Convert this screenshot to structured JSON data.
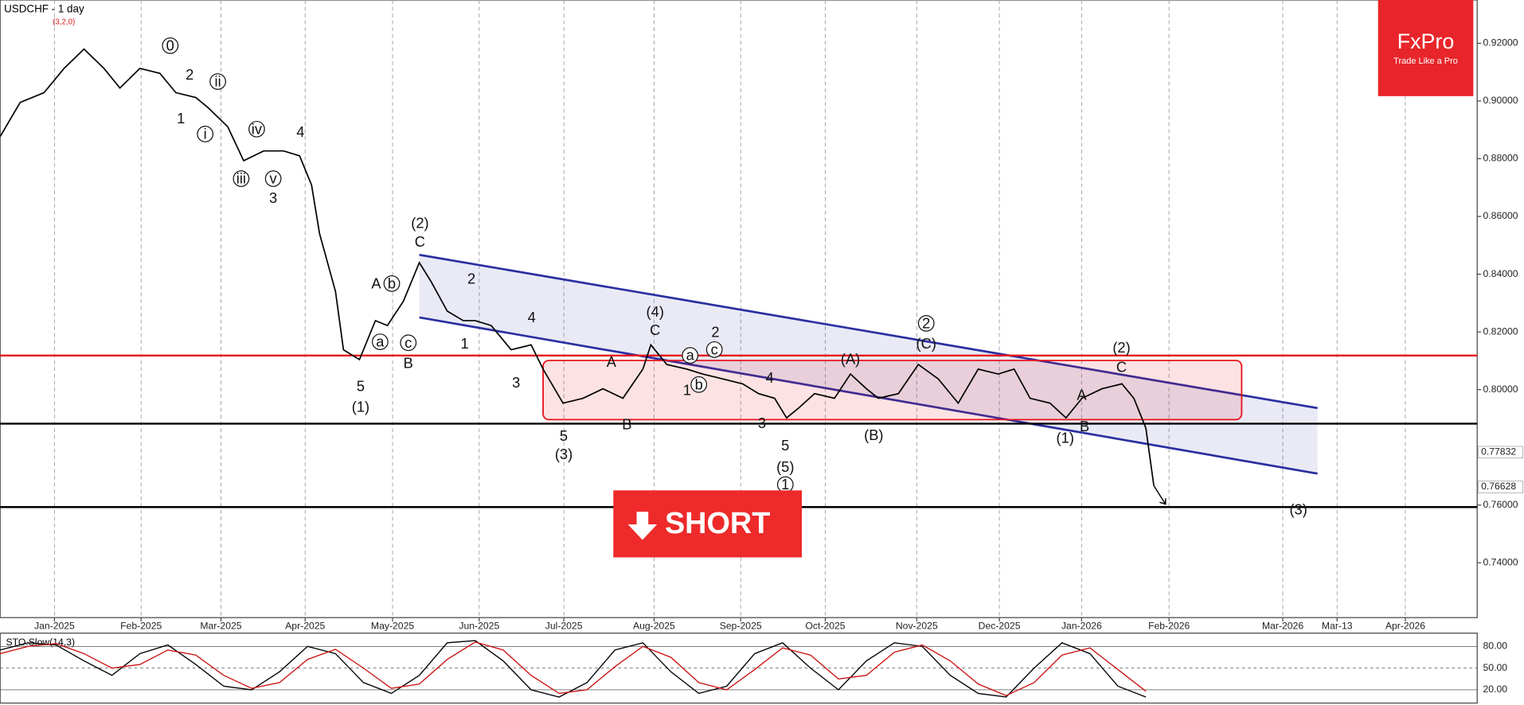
{
  "header": {
    "symbol_title": "USDCHF - 1 day",
    "indicator_params": "(3,2,0)"
  },
  "logo": {
    "brand": "FxPro",
    "tagline": "Trade Like a Pro"
  },
  "signal_button": "SHORT",
  "chart_data": [
    {
      "type": "line",
      "color": "#000000",
      "x": [
        0,
        5,
        11,
        16,
        21,
        26,
        30,
        35,
        40,
        44,
        49,
        52,
        57,
        61,
        66,
        71,
        75,
        78,
        80,
        84,
        86,
        90,
        94,
        97,
        101,
        105,
        108,
        112,
        116,
        119,
        123,
        128,
        133,
        136,
        141,
        146,
        151,
        156,
        161,
        163,
        167,
        172,
        176,
        181,
        186,
        190,
        194,
        197,
        200,
        204,
        209,
        213,
        217,
        220,
        225,
        230,
        235,
        240,
        245,
        250,
        254,
        258,
        263,
        267,
        271,
        276,
        281,
        284,
        287,
        289
      ],
      "values": [
        0.8877,
        0.8995,
        0.9029,
        0.9113,
        0.918,
        0.9113,
        0.9045,
        0.9113,
        0.9096,
        0.9029,
        0.9012,
        0.8978,
        0.8911,
        0.8793,
        0.8827,
        0.8827,
        0.881,
        0.8709,
        0.8541,
        0.834,
        0.8138,
        0.8104,
        0.8239,
        0.8222,
        0.8306,
        0.844,
        0.8373,
        0.8272,
        0.8239,
        0.8239,
        0.8222,
        0.8138,
        0.8155,
        0.8071,
        0.7953,
        0.797,
        0.8003,
        0.797,
        0.8071,
        0.8155,
        0.8087,
        0.8071,
        0.8054,
        0.8037,
        0.802,
        0.7986,
        0.797,
        0.7902,
        0.7936,
        0.7986,
        0.797,
        0.8054,
        0.8003,
        0.797,
        0.7986,
        0.8087,
        0.8037,
        0.7953,
        0.8071,
        0.8054,
        0.8071,
        0.797,
        0.7953,
        0.7902,
        0.797,
        0.8003,
        0.802,
        0.797,
        0.7867,
        0.7667
      ],
      "xlim": [
        0,
        370
      ],
      "xticks": [
        {
          "value": 13.6,
          "label": "Jan-2025"
        },
        {
          "value": 35.3,
          "label": "Feb-2025"
        },
        {
          "value": 55.3,
          "label": "Mar-2025"
        },
        {
          "value": 76.4,
          "label": "Apr-2025"
        },
        {
          "value": 98.3,
          "label": "May-2025"
        },
        {
          "value": 120,
          "label": "Jun-2025"
        },
        {
          "value": 141.2,
          "label": "Jul-2025"
        },
        {
          "value": 163.8,
          "label": "Aug-2025"
        },
        {
          "value": 185.5,
          "label": "Sep-2025"
        },
        {
          "value": 206.7,
          "label": "Oct-2025"
        },
        {
          "value": 229.6,
          "label": "Nov-2025"
        },
        {
          "value": 250.3,
          "label": "Dec-2025"
        },
        {
          "value": 270.9,
          "label": "Jan-2026"
        },
        {
          "value": 292.8,
          "label": "Feb-2026"
        },
        {
          "value": 321.3,
          "label": "Mar-2026"
        },
        {
          "value": 334.9,
          "label": "Mar-13"
        },
        {
          "value": 352,
          "label": "Apr-2026"
        }
      ],
      "grid": true,
      "ylim": [
        0.721,
        0.935
      ],
      "yticks": [
        {
          "value": 0.74,
          "label": "0.74000"
        },
        {
          "value": 0.76,
          "label": "0.76000"
        },
        {
          "value": 0.8,
          "label": "0.80000"
        },
        {
          "value": 0.82,
          "label": "0.82000"
        },
        {
          "value": 0.84,
          "label": "0.84000"
        },
        {
          "value": 0.86,
          "label": "0.86000"
        },
        {
          "value": 0.88,
          "label": "0.88000"
        },
        {
          "value": 0.9,
          "label": "0.90000"
        },
        {
          "value": 0.92,
          "label": "0.92000"
        }
      ],
      "price_labels": [
        {
          "value": 0.77832,
          "label": "0.77832"
        },
        {
          "value": 0.76628,
          "label": "0.76628"
        }
      ],
      "levels": [
        {
          "value": 0.8118,
          "color": "#e8141c"
        },
        {
          "value": 0.7882,
          "color": "#000000"
        },
        {
          "value": 0.7593,
          "color": "#000000"
        }
      ],
      "channel": {
        "x": [
          105,
          330
        ],
        "upper": [
          0.8467,
          0.7936
        ],
        "lower": [
          0.825,
          0.7709
        ],
        "color": "#2b2fa0"
      },
      "zone": {
        "x": [
          136,
          311
        ],
        "y": [
          0.7896,
          0.8101
        ],
        "color": "#e8141c"
      },
      "annotations": [
        {
          "text": "0",
          "circled": true
        },
        {
          "text": "2"
        },
        {
          "text": "1"
        },
        {
          "text": "ii",
          "circled": true
        },
        {
          "text": "i",
          "circled": true
        },
        {
          "text": "iv",
          "circled": true
        },
        {
          "text": "iii",
          "circled": true
        },
        {
          "text": "v",
          "circled": true
        },
        {
          "text": "3"
        },
        {
          "text": "4"
        },
        {
          "text": "(2)"
        },
        {
          "text": "C"
        },
        {
          "text": "A"
        },
        {
          "text": "b",
          "circled": true
        },
        {
          "text": "a",
          "circled": true
        },
        {
          "text": "c",
          "circled": true
        },
        {
          "text": "B"
        },
        {
          "text": "5"
        },
        {
          "text": "(1)"
        },
        {
          "text": "2"
        },
        {
          "text": "1"
        },
        {
          "text": "4"
        },
        {
          "text": "3"
        },
        {
          "text": "5"
        },
        {
          "text": "(3)"
        },
        {
          "text": "B"
        },
        {
          "text": "A"
        },
        {
          "text": "(4)"
        },
        {
          "text": "C"
        },
        {
          "text": "a",
          "circled": true
        },
        {
          "text": "b",
          "circled": true
        },
        {
          "text": "1"
        },
        {
          "text": "2"
        },
        {
          "text": "c",
          "circled": true
        },
        {
          "text": "4"
        },
        {
          "text": "3"
        },
        {
          "text": "5"
        },
        {
          "text": "(5)"
        },
        {
          "text": "1",
          "circled": true
        },
        {
          "text": "(A)"
        },
        {
          "text": "(B)"
        },
        {
          "text": "2",
          "circled": true
        },
        {
          "text": "(C)"
        },
        {
          "text": "(1)"
        },
        {
          "text": "B"
        },
        {
          "text": "A"
        },
        {
          "text": "(2)"
        },
        {
          "text": "C"
        },
        {
          "text": "(3)"
        }
      ]
    },
    {
      "type": "line",
      "title": "STO.Slow(14,3)",
      "x": [
        0,
        7,
        14,
        21,
        28,
        35,
        42,
        49,
        56,
        63,
        70,
        77,
        84,
        91,
        98,
        105,
        112,
        119,
        126,
        133,
        140,
        147,
        154,
        161,
        168,
        175,
        182,
        189,
        196,
        203,
        210,
        217,
        224,
        231,
        238,
        245,
        252,
        259,
        266,
        273,
        280,
        287
      ],
      "series": [
        {
          "color": "#000000",
          "values": [
            75,
            85,
            82,
            60,
            40,
            70,
            82,
            55,
            25,
            20,
            45,
            80,
            70,
            30,
            15,
            40,
            85,
            88,
            60,
            20,
            10,
            30,
            75,
            85,
            45,
            15,
            25,
            70,
            85,
            50,
            20,
            60,
            85,
            80,
            40,
            15,
            10,
            50,
            85,
            70,
            25,
            10
          ]
        },
        {
          "color": "#cc1111",
          "values": [
            70,
            80,
            84,
            70,
            50,
            55,
            75,
            68,
            40,
            22,
            30,
            62,
            76,
            50,
            22,
            28,
            62,
            86,
            75,
            40,
            15,
            20,
            52,
            80,
            65,
            30,
            20,
            48,
            78,
            68,
            35,
            40,
            72,
            82,
            60,
            28,
            12,
            30,
            68,
            78,
            48,
            18
          ]
        }
      ],
      "xlim": [
        0,
        370
      ],
      "ylim": [
        3,
        97
      ],
      "yticks": [
        {
          "value": 20,
          "label": "20.00"
        },
        {
          "value": 50,
          "label": "50.00"
        },
        {
          "value": 80,
          "label": "80.00"
        }
      ]
    }
  ]
}
